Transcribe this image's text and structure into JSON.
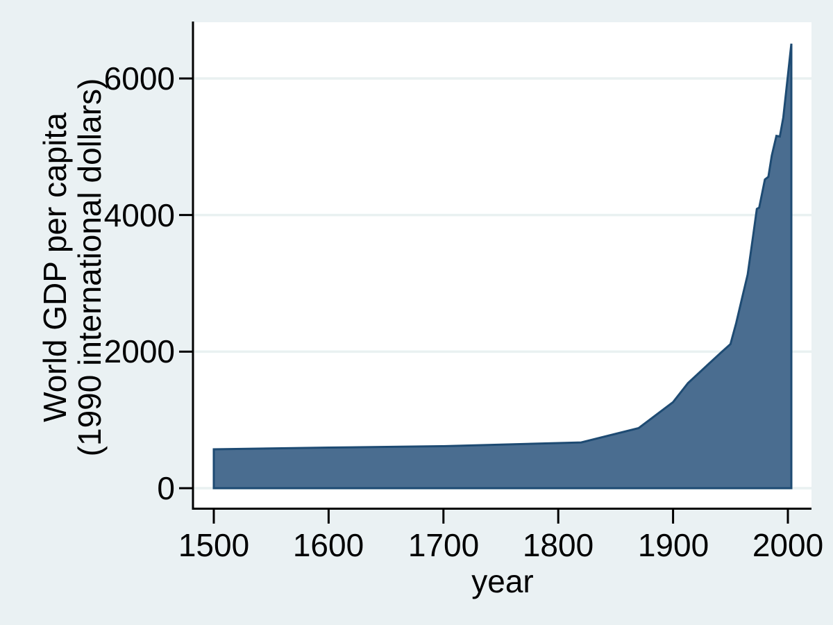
{
  "chart_data": {
    "type": "area",
    "title": "",
    "xlabel": "year",
    "ylabel_line1": "World GDP per capita",
    "ylabel_line2": "(1990 international dollars)",
    "x_tick_labels": [
      "1500",
      "1600",
      "1700",
      "1800",
      "1900",
      "2000"
    ],
    "y_tick_labels": [
      "0",
      "2000",
      "4000",
      "6000"
    ],
    "xlim": [
      1482,
      2021
    ],
    "ylim": [
      0,
      6820
    ],
    "grid": "horizontal gridlines at y ticks",
    "legend": "none",
    "series": [
      {
        "name": "World GDP per capita (1990 international dollars)",
        "points": [
          [
            1500,
            570
          ],
          [
            1600,
            595
          ],
          [
            1700,
            615
          ],
          [
            1820,
            670
          ],
          [
            1870,
            880
          ],
          [
            1900,
            1260
          ],
          [
            1913,
            1540
          ],
          [
            1940,
            1960
          ],
          [
            1950,
            2110
          ],
          [
            1955,
            2420
          ],
          [
            1960,
            2775
          ],
          [
            1965,
            3130
          ],
          [
            1970,
            3730
          ],
          [
            1973,
            4090
          ],
          [
            1975,
            4110
          ],
          [
            1980,
            4520
          ],
          [
            1983,
            4560
          ],
          [
            1986,
            4870
          ],
          [
            1990,
            5160
          ],
          [
            1993,
            5150
          ],
          [
            1996,
            5430
          ],
          [
            2000,
            6040
          ],
          [
            2003,
            6510
          ]
        ]
      }
    ],
    "colors": {
      "background": "#EAF1F3",
      "plot_background": "#FFFFFF",
      "gridline": "#E9F1F1",
      "axis": "#000000",
      "text": "#000000",
      "area_fill": "#4A6D90",
      "area_outline": "#1E4B73"
    }
  }
}
